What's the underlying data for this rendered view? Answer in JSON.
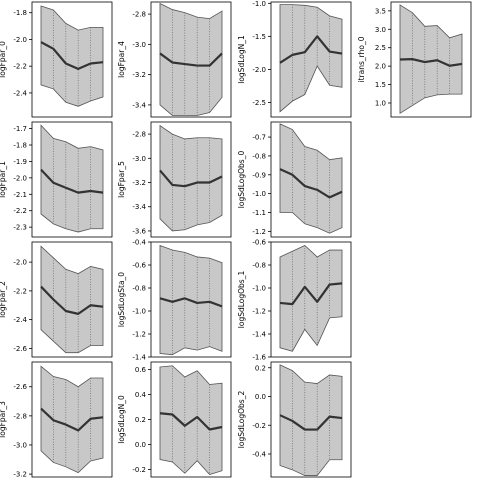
{
  "figure": {
    "panels_order": "column-major",
    "columns": 4,
    "rows": 4
  },
  "chart_data": [
    {
      "type": "line",
      "ylabel": "logFpar_0",
      "x": [
        0,
        1,
        2,
        3,
        4,
        5
      ],
      "mean": [
        -2.02,
        -2.07,
        -2.18,
        -2.22,
        -2.18,
        -2.17
      ],
      "lower": [
        -2.34,
        -2.37,
        -2.47,
        -2.5,
        -2.46,
        -2.43
      ],
      "upper": [
        -1.75,
        -1.78,
        -1.88,
        -1.93,
        -1.91,
        -1.91
      ],
      "ylim": [
        -2.58,
        -1.72
      ],
      "yticks": [
        -2.4,
        -2.2,
        -2.0,
        -1.8
      ],
      "ytick_labels": [
        "-2.4",
        "-2.2",
        "-2.0",
        "-1.8"
      ]
    },
    {
      "type": "line",
      "ylabel": "logFpar_1",
      "x": [
        0,
        1,
        2,
        3,
        4,
        5
      ],
      "mean": [
        -1.95,
        -2.03,
        -2.06,
        -2.09,
        -2.08,
        -2.09
      ],
      "lower": [
        -2.22,
        -2.28,
        -2.31,
        -2.33,
        -2.31,
        -2.31
      ],
      "upper": [
        -1.68,
        -1.76,
        -1.78,
        -1.82,
        -1.81,
        -1.83
      ],
      "ylim": [
        -2.36,
        -1.66
      ],
      "yticks": [
        -2.3,
        -2.2,
        -2.1,
        -2.0,
        -1.9,
        -1.8,
        -1.7
      ],
      "ytick_labels": [
        "-2.3",
        "-2.2",
        "-2.1",
        "-2.0",
        "-1.9",
        "-1.8",
        "-1.7"
      ]
    },
    {
      "type": "line",
      "ylabel": "logFpar_2",
      "x": [
        0,
        1,
        2,
        3,
        4,
        5
      ],
      "mean": [
        -2.17,
        -2.26,
        -2.34,
        -2.36,
        -2.3,
        -2.31
      ],
      "lower": [
        -2.47,
        -2.55,
        -2.63,
        -2.63,
        -2.58,
        -2.58
      ],
      "upper": [
        -1.89,
        -1.97,
        -2.05,
        -2.08,
        -2.03,
        -2.05
      ],
      "ylim": [
        -2.66,
        -1.86
      ],
      "yticks": [
        -2.6,
        -2.4,
        -2.2,
        -2.0
      ],
      "ytick_labels": [
        "-2.6",
        "-2.4",
        "-2.2",
        "-2.0"
      ]
    },
    {
      "type": "line",
      "ylabel": "logFpar_3",
      "x": [
        0,
        1,
        2,
        3,
        4,
        5
      ],
      "mean": [
        -2.75,
        -2.83,
        -2.86,
        -2.9,
        -2.82,
        -2.81
      ],
      "lower": [
        -3.04,
        -3.12,
        -3.15,
        -3.19,
        -3.11,
        -3.09
      ],
      "upper": [
        -2.46,
        -2.53,
        -2.55,
        -2.6,
        -2.54,
        -2.54
      ],
      "ylim": [
        -3.22,
        -2.43
      ],
      "yticks": [
        -3.2,
        -3.0,
        -2.8,
        -2.6
      ],
      "ytick_labels": [
        "-3.2",
        "-3.0",
        "-2.8",
        "-2.6"
      ]
    },
    {
      "type": "line",
      "ylabel": "logFpar_4",
      "x": [
        0,
        1,
        2,
        3,
        4,
        5
      ],
      "mean": [
        -3.06,
        -3.12,
        -3.13,
        -3.14,
        -3.14,
        -3.06
      ],
      "lower": [
        -3.4,
        -3.47,
        -3.47,
        -3.47,
        -3.45,
        -3.35
      ],
      "upper": [
        -2.73,
        -2.77,
        -2.79,
        -2.82,
        -2.83,
        -2.78
      ],
      "ylim": [
        -3.48,
        -2.72
      ],
      "yticks": [
        -3.4,
        -3.2,
        -3.0,
        -2.8
      ],
      "ytick_labels": [
        "-3.4",
        "-3.2",
        "-3.0",
        "-2.8"
      ]
    },
    {
      "type": "line",
      "ylabel": "logFpar_5",
      "x": [
        0,
        1,
        2,
        3,
        4,
        5
      ],
      "mean": [
        -3.1,
        -3.22,
        -3.23,
        -3.2,
        -3.2,
        -3.15
      ],
      "lower": [
        -3.5,
        -3.6,
        -3.59,
        -3.55,
        -3.53,
        -3.47
      ],
      "upper": [
        -2.73,
        -2.8,
        -2.84,
        -2.83,
        -2.83,
        -2.84
      ],
      "ylim": [
        -3.65,
        -2.7
      ],
      "yticks": [
        -3.6,
        -3.4,
        -3.2,
        -3.0,
        -2.8
      ],
      "ytick_labels": [
        "-3.6",
        "-3.4",
        "-3.2",
        "-3.0",
        "-2.8"
      ]
    },
    {
      "type": "line",
      "ylabel": "logSdLogSta_0",
      "x": [
        0,
        1,
        2,
        3,
        4,
        5
      ],
      "mean": [
        -0.89,
        -0.92,
        -0.89,
        -0.93,
        -0.92,
        -0.96
      ],
      "lower": [
        -1.37,
        -1.38,
        -1.32,
        -1.34,
        -1.31,
        -1.35
      ],
      "upper": [
        -0.43,
        -0.47,
        -0.49,
        -0.53,
        -0.54,
        -0.58
      ],
      "ylim": [
        -1.4,
        -0.4
      ],
      "yticks": [
        -1.4,
        -1.2,
        -1.0,
        -0.8,
        -0.6,
        -0.4
      ],
      "ytick_labels": [
        "-1.4",
        "-1.2",
        "-1.0",
        "-0.8",
        "-0.6",
        "-0.4"
      ]
    },
    {
      "type": "line",
      "ylabel": "logSdLogN_0",
      "x": [
        0,
        1,
        2,
        3,
        4,
        5
      ],
      "mean": [
        0.25,
        0.24,
        0.15,
        0.22,
        0.12,
        0.14
      ],
      "lower": [
        -0.12,
        -0.14,
        -0.23,
        -0.13,
        -0.24,
        -0.21
      ],
      "upper": [
        0.62,
        0.63,
        0.54,
        0.59,
        0.48,
        0.49
      ],
      "ylim": [
        -0.26,
        0.66
      ],
      "yticks": [
        -0.2,
        0.0,
        0.2,
        0.4,
        0.6
      ],
      "ytick_labels": [
        "-0.2",
        "0.0",
        "0.2",
        "0.4",
        "0.6"
      ]
    },
    {
      "type": "line",
      "ylabel": "logSdLogN_1",
      "x": [
        0,
        1,
        2,
        3,
        4,
        5
      ],
      "mean": [
        -1.9,
        -1.78,
        -1.74,
        -1.5,
        -1.73,
        -1.76
      ],
      "lower": [
        -2.64,
        -2.48,
        -2.38,
        -1.95,
        -2.24,
        -2.27
      ],
      "upper": [
        -1.02,
        -1.02,
        -1.03,
        -1.06,
        -1.19,
        -1.24
      ],
      "ylim": [
        -2.72,
        -0.98
      ],
      "yticks": [
        -2.5,
        -2.0,
        -1.5,
        -1.0
      ],
      "ytick_labels": [
        "-2.5",
        "-2.0",
        "-1.5",
        "-1.0"
      ]
    },
    {
      "type": "line",
      "ylabel": "logSdLogObs_0",
      "x": [
        0,
        1,
        2,
        3,
        4,
        5
      ],
      "mean": [
        -0.87,
        -0.9,
        -0.96,
        -0.98,
        -1.02,
        -0.99
      ],
      "lower": [
        -1.1,
        -1.1,
        -1.16,
        -1.18,
        -1.21,
        -1.18
      ],
      "upper": [
        -0.63,
        -0.66,
        -0.75,
        -0.77,
        -0.82,
        -0.81
      ],
      "ylim": [
        -1.23,
        -0.62
      ],
      "yticks": [
        -1.2,
        -1.1,
        -1.0,
        -0.9,
        -0.8,
        -0.7
      ],
      "ytick_labels": [
        "-1.2",
        "-1.1",
        "-1.0",
        "-0.9",
        "-0.8",
        "-0.7"
      ]
    },
    {
      "type": "line",
      "ylabel": "logSdLogObs_1",
      "x": [
        0,
        1,
        2,
        3,
        4,
        5
      ],
      "mean": [
        -1.13,
        -1.14,
        -0.99,
        -1.12,
        -0.97,
        -0.96
      ],
      "lower": [
        -1.52,
        -1.55,
        -1.36,
        -1.5,
        -1.26,
        -1.25
      ],
      "upper": [
        -0.73,
        -0.68,
        -0.63,
        -0.73,
        -0.67,
        -0.67
      ],
      "ylim": [
        -1.6,
        -0.6
      ],
      "yticks": [
        -1.6,
        -1.4,
        -1.2,
        -1.0,
        -0.8,
        -0.6
      ],
      "ytick_labels": [
        "-1.6",
        "-1.4",
        "-1.2",
        "-1.0",
        "-0.8",
        "-0.6"
      ]
    },
    {
      "type": "line",
      "ylabel": "logSdLogObs_2",
      "x": [
        0,
        1,
        2,
        3,
        4,
        5
      ],
      "mean": [
        -0.13,
        -0.17,
        -0.23,
        -0.23,
        -0.14,
        -0.15
      ],
      "lower": [
        -0.48,
        -0.51,
        -0.55,
        -0.55,
        -0.44,
        -0.44
      ],
      "upper": [
        0.22,
        0.18,
        0.1,
        0.09,
        0.15,
        0.14
      ],
      "ylim": [
        -0.56,
        0.24
      ],
      "yticks": [
        -0.4,
        -0.2,
        0.0,
        0.2
      ],
      "ytick_labels": [
        "-0.4",
        "-0.2",
        "0.0",
        "0.2"
      ]
    },
    {
      "type": "line",
      "ylabel": "itrans_rho_0",
      "x": [
        0,
        1,
        2,
        3,
        4,
        5
      ],
      "mean": [
        2.18,
        2.19,
        2.11,
        2.16,
        2.01,
        2.06
      ],
      "lower": [
        0.72,
        0.93,
        1.14,
        1.22,
        1.24,
        1.24
      ],
      "upper": [
        3.66,
        3.45,
        3.08,
        3.1,
        2.77,
        2.87
      ],
      "ylim": [
        0.62,
        3.74
      ],
      "yticks": [
        1.0,
        1.5,
        2.0,
        2.5,
        3.0,
        3.5
      ],
      "ytick_labels": [
        "1.0",
        "1.5",
        "2.0",
        "2.5",
        "3.0",
        "3.5"
      ]
    }
  ]
}
